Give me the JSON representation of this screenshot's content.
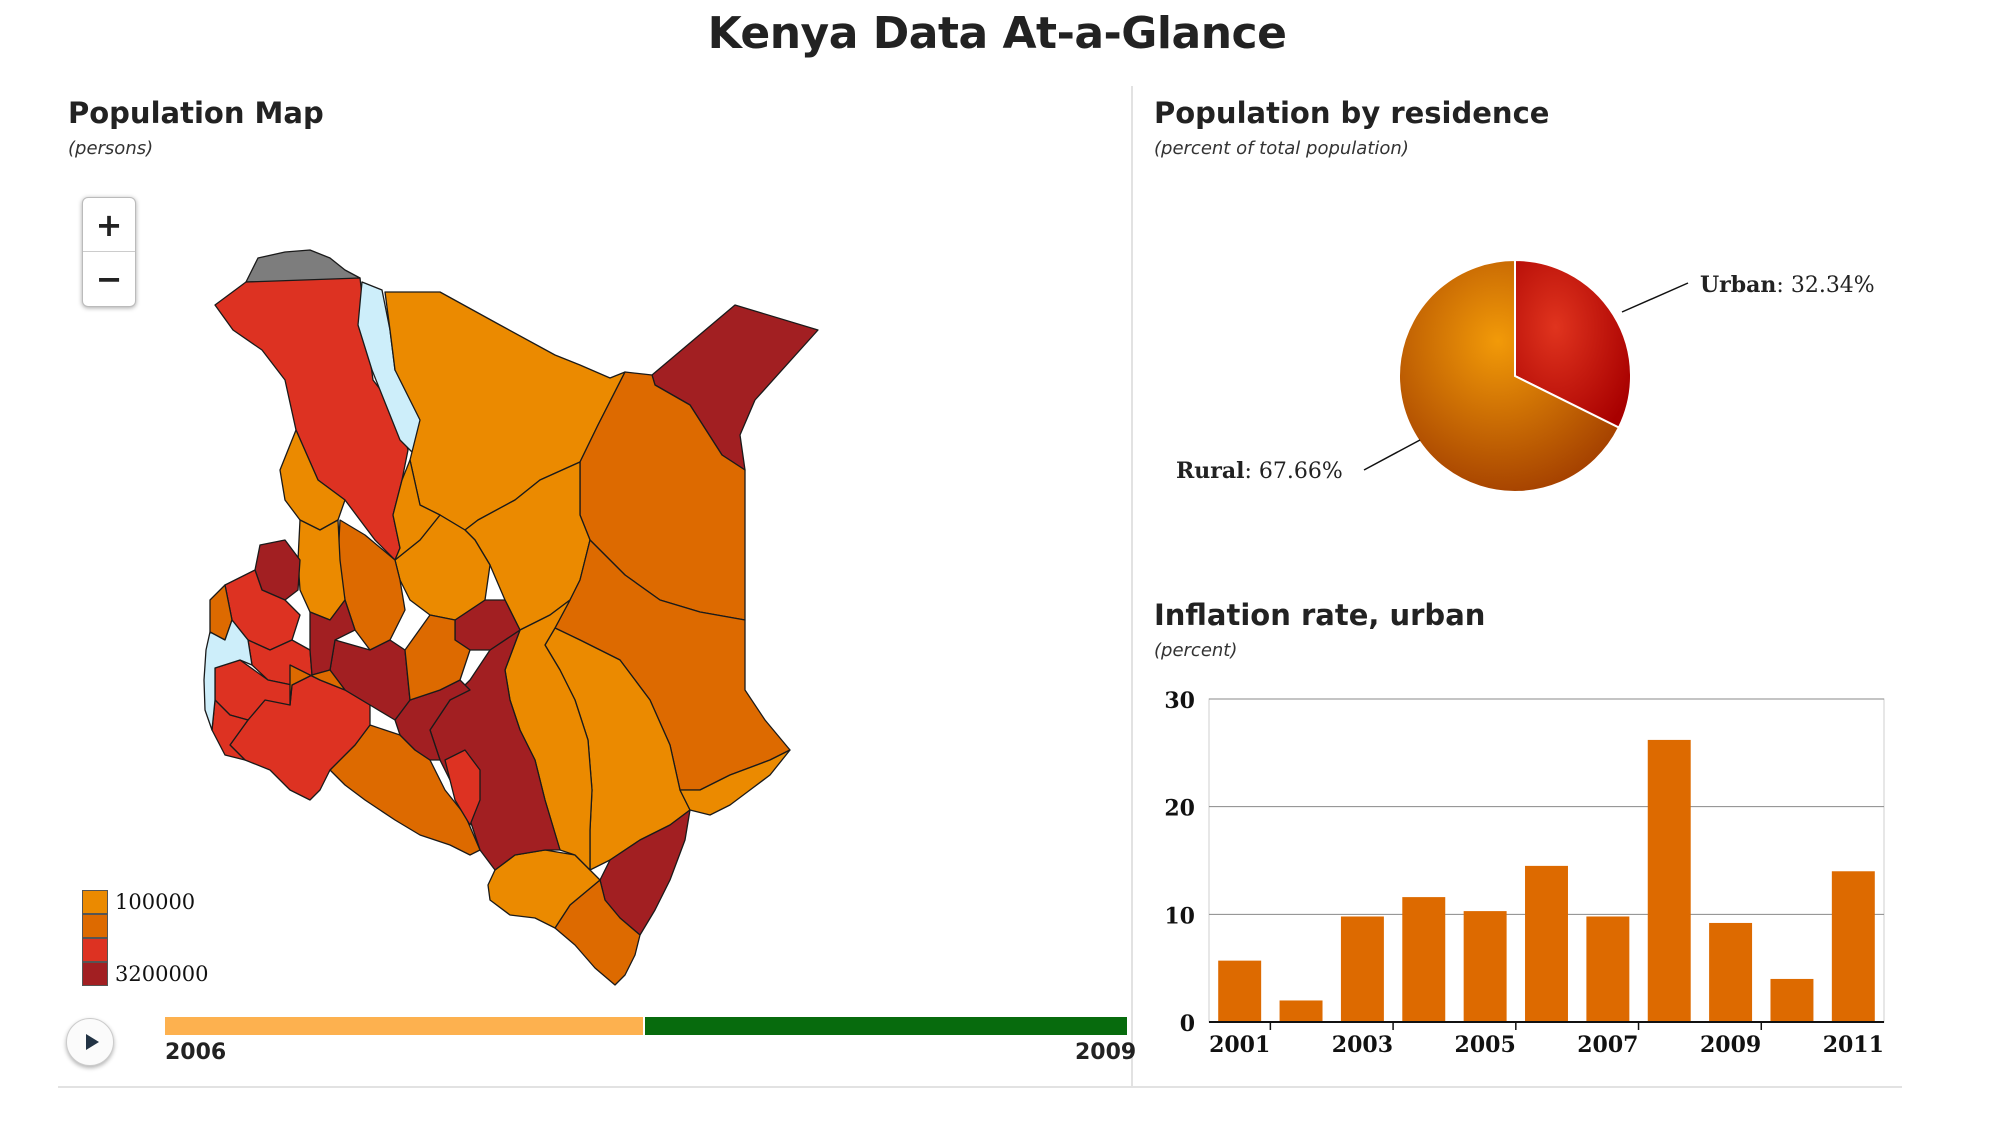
{
  "header": {
    "title": "Kenya Data At-a-Glance"
  },
  "map_panel": {
    "title": "Population Map",
    "subtitle": "(persons)",
    "zoom_in": "+",
    "zoom_out": "−",
    "legend": [
      {
        "label": "100000",
        "color": "#eb8a00"
      },
      {
        "label": "",
        "color": "#dd6a00"
      },
      {
        "label": "",
        "color": "#dd3222"
      },
      {
        "label": "3200000",
        "color": "#a21f22"
      }
    ],
    "water_color": "#cdeefa",
    "nodata_color": "#7d7d7d",
    "timeline": {
      "start_label": "2006",
      "end_label": "2009",
      "position": 0.5
    }
  },
  "residence_panel": {
    "title": "Population by residence",
    "subtitle": "(percent of total population)",
    "urban_label": "Urban",
    "urban_value": ": 32.34%",
    "rural_label": "Rural",
    "rural_value": ": 67.66%"
  },
  "inflation_panel": {
    "title": "Inflation rate, urban",
    "subtitle": "(percent)"
  },
  "chart_data": [
    {
      "type": "pie",
      "categories": [
        "Urban",
        "Rural"
      ],
      "values": [
        32.34,
        67.66
      ],
      "colors": [
        "#cc1b10",
        "#dd6a00"
      ]
    },
    {
      "type": "bar",
      "categories": [
        "2001",
        "2002",
        "2003",
        "2004",
        "2005",
        "2006",
        "2007",
        "2008",
        "2009",
        "2010",
        "2011"
      ],
      "values": [
        5.7,
        2.0,
        9.8,
        11.6,
        10.3,
        14.5,
        9.8,
        26.2,
        9.2,
        4.0,
        14.0
      ],
      "tick_labels_x": [
        "2001",
        "2003",
        "2005",
        "2007",
        "2009",
        "2011"
      ],
      "tick_labels_y": [
        "0",
        "10",
        "20",
        "30"
      ],
      "ylim": [
        0,
        30
      ],
      "color": "#dd6a00",
      "grid": true
    }
  ]
}
